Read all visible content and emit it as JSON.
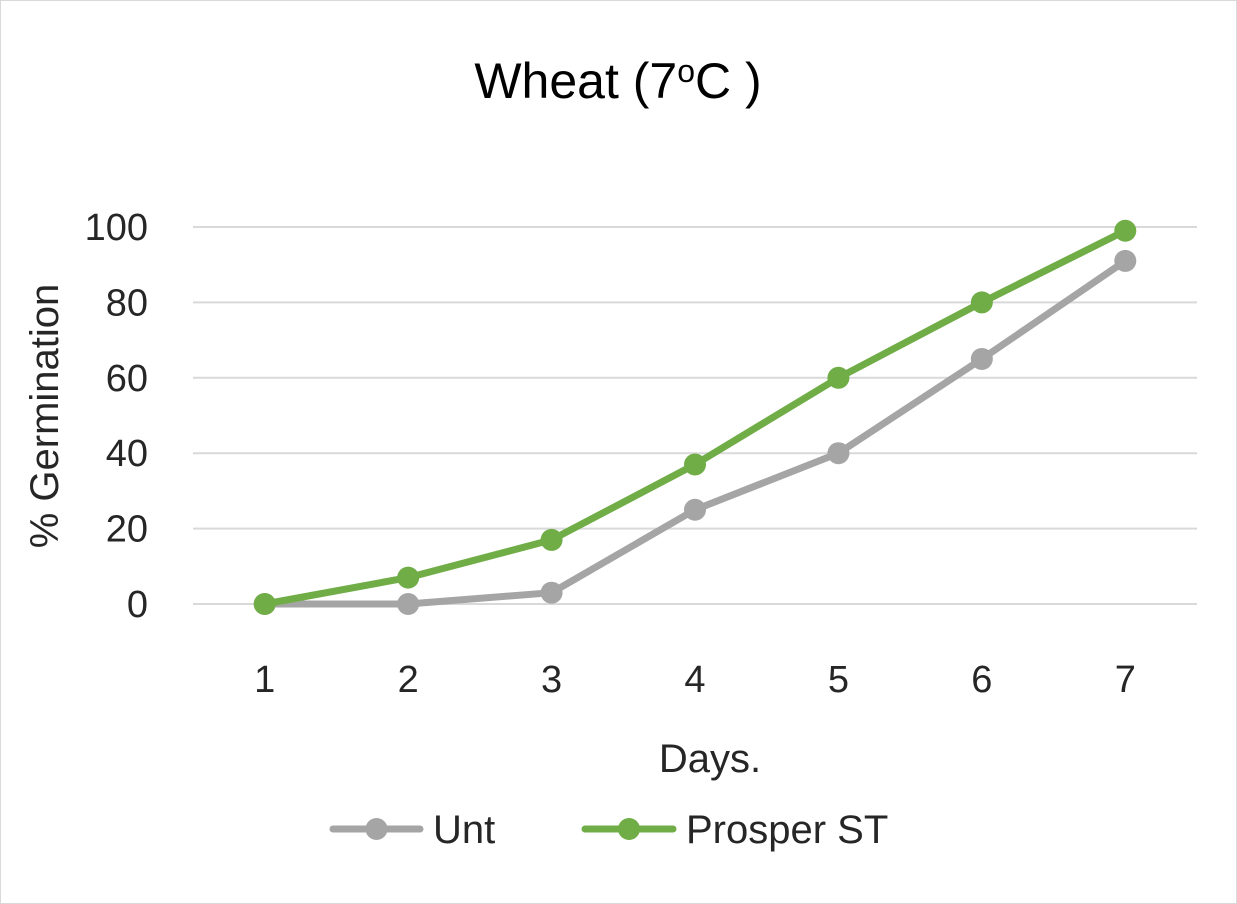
{
  "chart_data": {
    "type": "line",
    "title_main": "Wheat (7",
    "title_sup": "o",
    "title_end": "C )",
    "xlabel": "Days.",
    "ylabel": "% Germination",
    "categories": [
      "1",
      "2",
      "3",
      "4",
      "5",
      "6",
      "7"
    ],
    "ylim": [
      0,
      100
    ],
    "yticks": [
      0,
      20,
      40,
      60,
      80,
      100
    ],
    "grid": true,
    "legend": "bottom",
    "series": [
      {
        "name": "Unt",
        "color": "#a5a5a5",
        "values": [
          0,
          0,
          3,
          25,
          40,
          65,
          91
        ]
      },
      {
        "name": "Prosper ST",
        "color": "#70ad47",
        "values": [
          0,
          7,
          17,
          37,
          60,
          80,
          99
        ]
      }
    ]
  }
}
